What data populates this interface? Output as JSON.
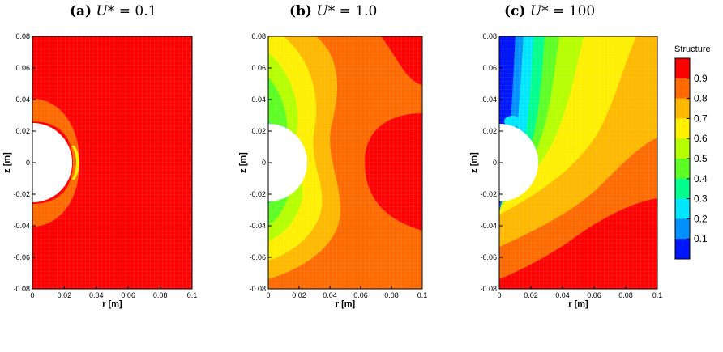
{
  "chart_data": [
    {
      "type": "heatmap",
      "panel": "(a)",
      "title_prefix": "U* = ",
      "title_value": "0.1",
      "xlabel": "r [m]",
      "ylabel": "z [m]",
      "xlim": [
        0,
        0.1
      ],
      "ylim": [
        -0.08,
        0.08
      ],
      "x_ticks": [
        "0",
        "0.02",
        "0.04",
        "0.06",
        "0.08",
        "0.1"
      ],
      "y_ticks": [
        "0.08",
        "0.06",
        "0.04",
        "0.02",
        "0",
        "-0.02",
        "-0.04",
        "-0.06",
        "-0.08"
      ],
      "hole_radius": 0.025,
      "field": "Structure",
      "description_levels": {
        "far_field": 0.95,
        "near_cylinder": 0.85,
        "min_near_surface": 0.75
      }
    },
    {
      "type": "heatmap",
      "panel": "(b)",
      "title_prefix": "U* = ",
      "title_value": "1.0",
      "xlabel": "r [m]",
      "ylabel": "z [m]",
      "xlim": [
        0,
        0.1
      ],
      "ylim": [
        -0.08,
        0.08
      ],
      "x_ticks": [
        "0",
        "0.02",
        "0.04",
        "0.06",
        "0.08",
        "0.1"
      ],
      "y_ticks": [
        "0.08",
        "0.06",
        "0.04",
        "0.02",
        "0",
        "-0.02",
        "-0.04",
        "-0.06",
        "-0.08"
      ],
      "hole_radius": 0.025,
      "field": "Structure"
    },
    {
      "type": "heatmap",
      "panel": "(c)",
      "title_prefix": "U* = ",
      "title_value": "100",
      "xlabel": "r [m]",
      "ylabel": "z [m]",
      "xlim": [
        0,
        0.1
      ],
      "ylim": [
        -0.08,
        0.08
      ],
      "x_ticks": [
        "0",
        "0.02",
        "0.04",
        "0.06",
        "0.08",
        "0.1"
      ],
      "y_ticks": [
        "0.08",
        "0.06",
        "0.04",
        "0.02",
        "0",
        "-0.02",
        "-0.04",
        "-0.06",
        "-0.08"
      ],
      "hole_radius": 0.025,
      "field": "Structure"
    }
  ],
  "colorbar": {
    "title": "Structure",
    "levels": [
      "0.9",
      "0.8",
      "0.7",
      "0.6",
      "0.5",
      "0.4",
      "0.3",
      "0.2",
      "0.1"
    ],
    "colors": [
      "#ff0000",
      "#ff6a00",
      "#ffb800",
      "#ffef00",
      "#b6ff00",
      "#5cff24",
      "#00ff8c",
      "#00e6ff",
      "#0090ff",
      "#0016ff"
    ]
  }
}
